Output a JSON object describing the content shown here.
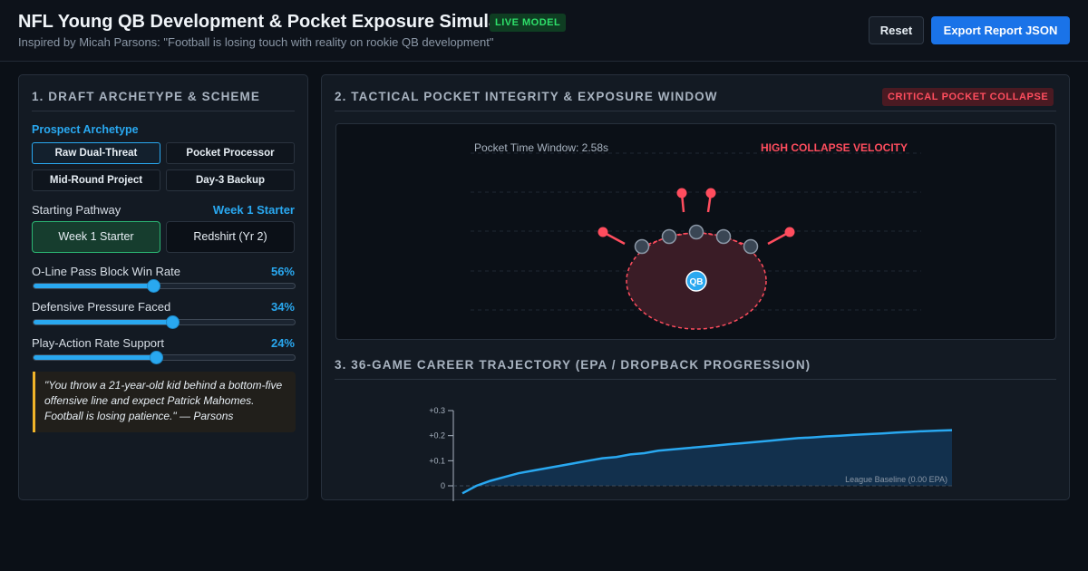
{
  "header": {
    "title": "NFL Young QB Development & Pocket Exposure Simulator",
    "live_badge": "LIVE MODEL",
    "subtitle": "Inspired by Micah Parsons: \"Football is losing touch with reality on rookie QB development\"",
    "reset_label": "Reset",
    "export_label": "Export Report JSON"
  },
  "left": {
    "section_title": "1. DRAFT ARCHETYPE & SCHEME",
    "archetype_label": "Prospect Archetype",
    "archetypes": [
      "Raw Dual-Threat",
      "Pocket Processor",
      "Mid-Round Project",
      "Day-3 Backup"
    ],
    "selected_archetype": "Raw Dual-Threat",
    "pathway_label": "Starting Pathway",
    "pathway_value": "Week 1 Starter",
    "pathways": [
      "Week 1 Starter",
      "Redshirt (Yr 2)"
    ],
    "sliders": [
      {
        "label": "O-Line Pass Block Win Rate",
        "value_text": "56%",
        "fraction": 0.46
      },
      {
        "label": "Defensive Pressure Faced",
        "value_text": "34%",
        "fraction": 0.53
      },
      {
        "label": "Play-Action Rate Support",
        "value_text": "24%",
        "fraction": 0.47
      }
    ],
    "quote": "\"You throw a 21-year-old kid behind a bottom-five offensive line and expect Patrick Mahomes. Football is losing patience.\" — Parsons"
  },
  "pocket": {
    "section_title": "2. TACTICAL POCKET INTEGRITY & EXPOSURE WINDOW",
    "status_badge": "CRITICAL POCKET COLLAPSE",
    "time_window": "Pocket Time Window: 2.58s",
    "velocity_label": "HIGH COLLAPSE VELOCITY",
    "qb_label": "QB",
    "colors": {
      "defender": "#ff4d5e",
      "lineman": "#3a4654",
      "qb": "#29a8f0",
      "pocket": "#3a1c26"
    }
  },
  "trajectory": {
    "section_title": "3. 36-GAME CAREER TRAJECTORY (EPA / DROPBACK PROGRESSION)",
    "baseline_label": "League Baseline (0.00 EPA)",
    "chart_data": {
      "type": "area",
      "ylim": [
        0,
        0.3
      ],
      "y_ticks": [
        "+0.3",
        "+0.2",
        "+0.1",
        "0"
      ],
      "x": [
        1,
        2,
        3,
        4,
        5,
        6,
        7,
        8,
        9,
        10,
        11,
        12,
        13,
        14,
        15,
        16,
        17,
        18,
        19,
        20,
        21,
        22,
        23,
        24,
        25,
        26,
        27,
        28,
        29,
        30,
        31,
        32,
        33,
        34,
        35,
        36
      ],
      "values": [
        -0.03,
        0.0,
        0.02,
        0.035,
        0.05,
        0.06,
        0.07,
        0.08,
        0.09,
        0.1,
        0.11,
        0.115,
        0.125,
        0.13,
        0.14,
        0.145,
        0.15,
        0.155,
        0.16,
        0.165,
        0.17,
        0.175,
        0.18,
        0.185,
        0.19,
        0.193,
        0.197,
        0.2,
        0.203,
        0.206,
        0.209,
        0.212,
        0.215,
        0.218,
        0.22,
        0.222
      ],
      "baseline": 0
    }
  }
}
